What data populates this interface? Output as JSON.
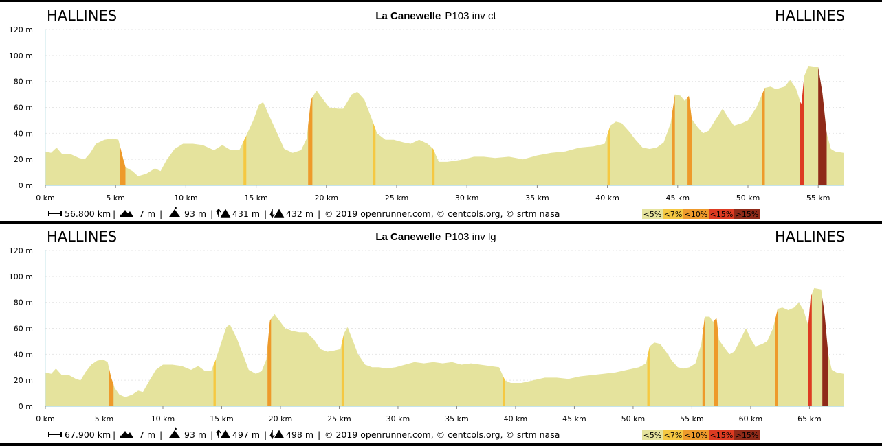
{
  "colors": {
    "fill": "#e5e39d",
    "lt7": "#f5c842",
    "lt10": "#ee9a2b",
    "lt15": "#dd3b22",
    "gt15": "#8f2a19",
    "grid": "#e6e6e6",
    "axis": "#c6e4ea"
  },
  "legend": [
    {
      "label": "<5%",
      "color": "#e5e39d"
    },
    {
      "label": "<7%",
      "color": "#f5c842"
    },
    {
      "label": "<10%",
      "color": "#ee9a2b"
    },
    {
      "label": "<15%",
      "color": "#dd3b22"
    },
    {
      "label": ">15%",
      "color": "#8f2a19"
    }
  ],
  "chart_data": [
    {
      "type": "area",
      "title_bold": "La Canewelle",
      "title_rest": "P103 inv ct",
      "start_label": "HALLINES",
      "end_label": "HALLINES",
      "x_unit": "km",
      "y_unit": "m",
      "xlim": [
        0,
        56.8
      ],
      "ylim": [
        0,
        120
      ],
      "x_ticks": [
        0,
        5,
        10,
        15,
        20,
        25,
        30,
        35,
        40,
        45,
        50,
        55
      ],
      "x_tick_labels": [
        "0 km",
        "5 km",
        "10 km",
        "15 km",
        "20 km",
        "25 km",
        "30 km",
        "35 km",
        "40 km",
        "45 km",
        "50 km",
        "55 km"
      ],
      "y_ticks": [
        0,
        20,
        40,
        60,
        80,
        100,
        120
      ],
      "y_tick_labels": [
        "0 m",
        "20 m",
        "40 m",
        "60 m",
        "80 m",
        "100 m",
        "120 m"
      ],
      "grid": true,
      "elevation": [
        [
          0,
          26
        ],
        [
          0.4,
          25
        ],
        [
          0.8,
          29
        ],
        [
          1.2,
          24
        ],
        [
          1.8,
          24
        ],
        [
          2.4,
          21
        ],
        [
          2.8,
          20
        ],
        [
          3.2,
          25
        ],
        [
          3.6,
          32
        ],
        [
          4.2,
          35
        ],
        [
          4.8,
          36
        ],
        [
          5.2,
          35
        ],
        [
          5.5,
          22
        ],
        [
          5.7,
          14
        ],
        [
          6.2,
          11
        ],
        [
          6.6,
          7
        ],
        [
          7.2,
          9
        ],
        [
          7.8,
          13
        ],
        [
          8.2,
          11
        ],
        [
          8.6,
          19
        ],
        [
          9.2,
          28
        ],
        [
          9.8,
          32
        ],
        [
          10.5,
          32
        ],
        [
          11.2,
          31
        ],
        [
          12,
          27
        ],
        [
          12.6,
          31
        ],
        [
          13.2,
          27
        ],
        [
          13.8,
          27
        ],
        [
          14.2,
          36
        ],
        [
          14.8,
          50
        ],
        [
          15.2,
          62
        ],
        [
          15.5,
          64
        ],
        [
          16,
          52
        ],
        [
          16.5,
          40
        ],
        [
          17,
          28
        ],
        [
          17.6,
          25
        ],
        [
          18.2,
          27
        ],
        [
          18.6,
          36
        ],
        [
          18.9,
          66
        ],
        [
          19.3,
          73
        ],
        [
          19.7,
          67
        ],
        [
          20.2,
          60
        ],
        [
          20.8,
          59
        ],
        [
          21.2,
          59
        ],
        [
          21.8,
          70
        ],
        [
          22.2,
          72
        ],
        [
          22.7,
          66
        ],
        [
          23.2,
          52
        ],
        [
          23.6,
          40
        ],
        [
          24.2,
          35
        ],
        [
          24.8,
          35
        ],
        [
          25.5,
          33
        ],
        [
          26,
          32
        ],
        [
          26.6,
          35
        ],
        [
          27.2,
          32
        ],
        [
          27.6,
          28
        ],
        [
          28,
          18
        ],
        [
          28.6,
          18
        ],
        [
          29.2,
          19
        ],
        [
          29.8,
          20
        ],
        [
          30.5,
          22
        ],
        [
          31.2,
          22
        ],
        [
          32,
          21
        ],
        [
          33,
          22
        ],
        [
          34,
          20
        ],
        [
          35,
          23
        ],
        [
          36,
          25
        ],
        [
          37,
          26
        ],
        [
          38,
          29
        ],
        [
          39,
          30
        ],
        [
          39.8,
          32
        ],
        [
          40.2,
          46
        ],
        [
          40.6,
          49
        ],
        [
          41,
          48
        ],
        [
          41.5,
          42
        ],
        [
          42,
          35
        ],
        [
          42.5,
          29
        ],
        [
          43,
          28
        ],
        [
          43.5,
          29
        ],
        [
          44,
          33
        ],
        [
          44.5,
          48
        ],
        [
          44.8,
          70
        ],
        [
          45.2,
          69
        ],
        [
          45.5,
          65
        ],
        [
          45.8,
          69
        ],
        [
          46,
          51
        ],
        [
          46.4,
          45
        ],
        [
          46.8,
          40
        ],
        [
          47.2,
          42
        ],
        [
          47.6,
          49
        ],
        [
          48.2,
          59
        ],
        [
          48.6,
          52
        ],
        [
          49,
          46
        ],
        [
          49.6,
          48
        ],
        [
          50,
          50
        ],
        [
          50.6,
          60
        ],
        [
          51.2,
          75
        ],
        [
          51.6,
          76
        ],
        [
          52,
          74
        ],
        [
          52.6,
          76
        ],
        [
          53,
          81
        ],
        [
          53.4,
          75
        ],
        [
          53.8,
          62
        ],
        [
          54,
          84
        ],
        [
          54.3,
          92
        ],
        [
          55,
          91
        ],
        [
          55.3,
          71
        ],
        [
          55.6,
          40
        ],
        [
          55.9,
          28
        ],
        [
          56.2,
          26
        ],
        [
          56.8,
          25
        ]
      ],
      "steep_bands": [
        {
          "x0": 5.3,
          "x1": 5.7,
          "grade": "<10%"
        },
        {
          "x0": 14.1,
          "x1": 14.3,
          "grade": "<7%"
        },
        {
          "x0": 18.7,
          "x1": 19.0,
          "grade": "<10%"
        },
        {
          "x0": 23.3,
          "x1": 23.5,
          "grade": "<7%"
        },
        {
          "x0": 27.5,
          "x1": 27.7,
          "grade": "<7%"
        },
        {
          "x0": 40.0,
          "x1": 40.2,
          "grade": "<7%"
        },
        {
          "x0": 44.6,
          "x1": 44.8,
          "grade": "<10%"
        },
        {
          "x0": 45.7,
          "x1": 46.0,
          "grade": "<10%"
        },
        {
          "x0": 51.0,
          "x1": 51.2,
          "grade": "<10%"
        },
        {
          "x0": 53.7,
          "x1": 54.0,
          "grade": "<15%"
        },
        {
          "x0": 55.0,
          "x1": 55.6,
          "grade": ">15%"
        }
      ],
      "stats": {
        "distance": "56.800 km",
        "min_alt": "7 m",
        "max_alt": "93 m",
        "ascent": "431 m",
        "descent": "432 m",
        "credits": "© 2019 openrunner.com, © centcols.org, © srtm nasa"
      }
    },
    {
      "type": "area",
      "title_bold": "La Canewelle",
      "title_rest": "P103 inv lg",
      "start_label": "HALLINES",
      "end_label": "HALLINES",
      "x_unit": "km",
      "y_unit": "m",
      "xlim": [
        0,
        67.9
      ],
      "ylim": [
        0,
        120
      ],
      "x_ticks": [
        0,
        5,
        10,
        15,
        20,
        25,
        30,
        35,
        40,
        45,
        50,
        55,
        60,
        65
      ],
      "x_tick_labels": [
        "0 km",
        "5 km",
        "10 km",
        "15 km",
        "20 km",
        "25 km",
        "30 km",
        "35 km",
        "40 km",
        "45 km",
        "50 km",
        "55 km",
        "60 km",
        "65 km"
      ],
      "y_ticks": [
        0,
        20,
        40,
        60,
        80,
        100,
        120
      ],
      "y_tick_labels": [
        "0 m",
        "20 m",
        "40 m",
        "60 m",
        "80 m",
        "100 m",
        "120 m"
      ],
      "grid": true,
      "elevation": [
        [
          0,
          26
        ],
        [
          0.5,
          25
        ],
        [
          0.9,
          29
        ],
        [
          1.4,
          24
        ],
        [
          2,
          24
        ],
        [
          2.6,
          21
        ],
        [
          3,
          20
        ],
        [
          3.4,
          26
        ],
        [
          3.9,
          32
        ],
        [
          4.4,
          35
        ],
        [
          4.9,
          36
        ],
        [
          5.3,
          34
        ],
        [
          5.6,
          22
        ],
        [
          5.9,
          14
        ],
        [
          6.3,
          9
        ],
        [
          6.8,
          7
        ],
        [
          7.4,
          9
        ],
        [
          7.9,
          12
        ],
        [
          8.3,
          11
        ],
        [
          8.8,
          19
        ],
        [
          9.4,
          28
        ],
        [
          10,
          32
        ],
        [
          10.8,
          32
        ],
        [
          11.6,
          31
        ],
        [
          12.4,
          28
        ],
        [
          13,
          31
        ],
        [
          13.6,
          27
        ],
        [
          14.1,
          27
        ],
        [
          14.5,
          36
        ],
        [
          15,
          50
        ],
        [
          15.4,
          61
        ],
        [
          15.7,
          63
        ],
        [
          16.3,
          52
        ],
        [
          16.8,
          40
        ],
        [
          17.3,
          28
        ],
        [
          17.9,
          25
        ],
        [
          18.4,
          27
        ],
        [
          18.8,
          36
        ],
        [
          19.1,
          66
        ],
        [
          19.5,
          71
        ],
        [
          19.9,
          66
        ],
        [
          20.4,
          60
        ],
        [
          21,
          58
        ],
        [
          21.6,
          57
        ],
        [
          22.2,
          57
        ],
        [
          22.8,
          52
        ],
        [
          23.4,
          44
        ],
        [
          24,
          42
        ],
        [
          24.6,
          43
        ],
        [
          25.1,
          44
        ],
        [
          25.4,
          56
        ],
        [
          25.7,
          61
        ],
        [
          26.1,
          52
        ],
        [
          26.6,
          40
        ],
        [
          27.2,
          32
        ],
        [
          27.8,
          30
        ],
        [
          28.4,
          30
        ],
        [
          29,
          29
        ],
        [
          29.8,
          30
        ],
        [
          30.6,
          32
        ],
        [
          31.4,
          34
        ],
        [
          32.2,
          33
        ],
        [
          33,
          34
        ],
        [
          33.8,
          33
        ],
        [
          34.6,
          34
        ],
        [
          35.4,
          32
        ],
        [
          36.2,
          33
        ],
        [
          37,
          32
        ],
        [
          37.8,
          31
        ],
        [
          38.6,
          30
        ],
        [
          39.1,
          20
        ],
        [
          39.6,
          18
        ],
        [
          40.5,
          18
        ],
        [
          41.5,
          20
        ],
        [
          42.5,
          22
        ],
        [
          43.5,
          22
        ],
        [
          44.5,
          21
        ],
        [
          45.5,
          23
        ],
        [
          46.5,
          24
        ],
        [
          47.5,
          25
        ],
        [
          48.5,
          26
        ],
        [
          49.5,
          28
        ],
        [
          50.5,
          30
        ],
        [
          51.1,
          33
        ],
        [
          51.4,
          46
        ],
        [
          51.8,
          49
        ],
        [
          52.3,
          48
        ],
        [
          52.8,
          42
        ],
        [
          53.3,
          35
        ],
        [
          53.8,
          30
        ],
        [
          54.3,
          29
        ],
        [
          54.8,
          30
        ],
        [
          55.3,
          33
        ],
        [
          55.8,
          48
        ],
        [
          56.1,
          69
        ],
        [
          56.5,
          69
        ],
        [
          56.8,
          65
        ],
        [
          57.1,
          68
        ],
        [
          57.3,
          51
        ],
        [
          57.7,
          46
        ],
        [
          58.2,
          40
        ],
        [
          58.6,
          42
        ],
        [
          59,
          49
        ],
        [
          59.6,
          60
        ],
        [
          60,
          52
        ],
        [
          60.4,
          46
        ],
        [
          61,
          48
        ],
        [
          61.4,
          50
        ],
        [
          61.9,
          60
        ],
        [
          62.3,
          75
        ],
        [
          62.7,
          76
        ],
        [
          63.2,
          74
        ],
        [
          63.7,
          76
        ],
        [
          64.1,
          80
        ],
        [
          64.5,
          74
        ],
        [
          64.9,
          62
        ],
        [
          65.1,
          84
        ],
        [
          65.4,
          91
        ],
        [
          66,
          90
        ],
        [
          66.3,
          70
        ],
        [
          66.6,
          40
        ],
        [
          66.9,
          28
        ],
        [
          67.3,
          26
        ],
        [
          67.9,
          25
        ]
      ],
      "steep_bands": [
        {
          "x0": 5.4,
          "x1": 5.8,
          "grade": "<10%"
        },
        {
          "x0": 14.3,
          "x1": 14.5,
          "grade": "<7%"
        },
        {
          "x0": 18.9,
          "x1": 19.2,
          "grade": "<10%"
        },
        {
          "x0": 25.2,
          "x1": 25.4,
          "grade": "<7%"
        },
        {
          "x0": 38.9,
          "x1": 39.1,
          "grade": "<7%"
        },
        {
          "x0": 51.2,
          "x1": 51.4,
          "grade": "<7%"
        },
        {
          "x0": 55.9,
          "x1": 56.1,
          "grade": "<10%"
        },
        {
          "x0": 56.9,
          "x1": 57.2,
          "grade": "<10%"
        },
        {
          "x0": 62.1,
          "x1": 62.3,
          "grade": "<10%"
        },
        {
          "x0": 64.9,
          "x1": 65.2,
          "grade": "<15%"
        },
        {
          "x0": 66.1,
          "x1": 66.6,
          "grade": ">15%"
        }
      ],
      "stats": {
        "distance": "67.900 km",
        "min_alt": "7 m",
        "max_alt": "93 m",
        "ascent": "497 m",
        "descent": "498 m",
        "credits": "© 2019 openrunner.com, © centcols.org, © srtm nasa"
      }
    }
  ]
}
